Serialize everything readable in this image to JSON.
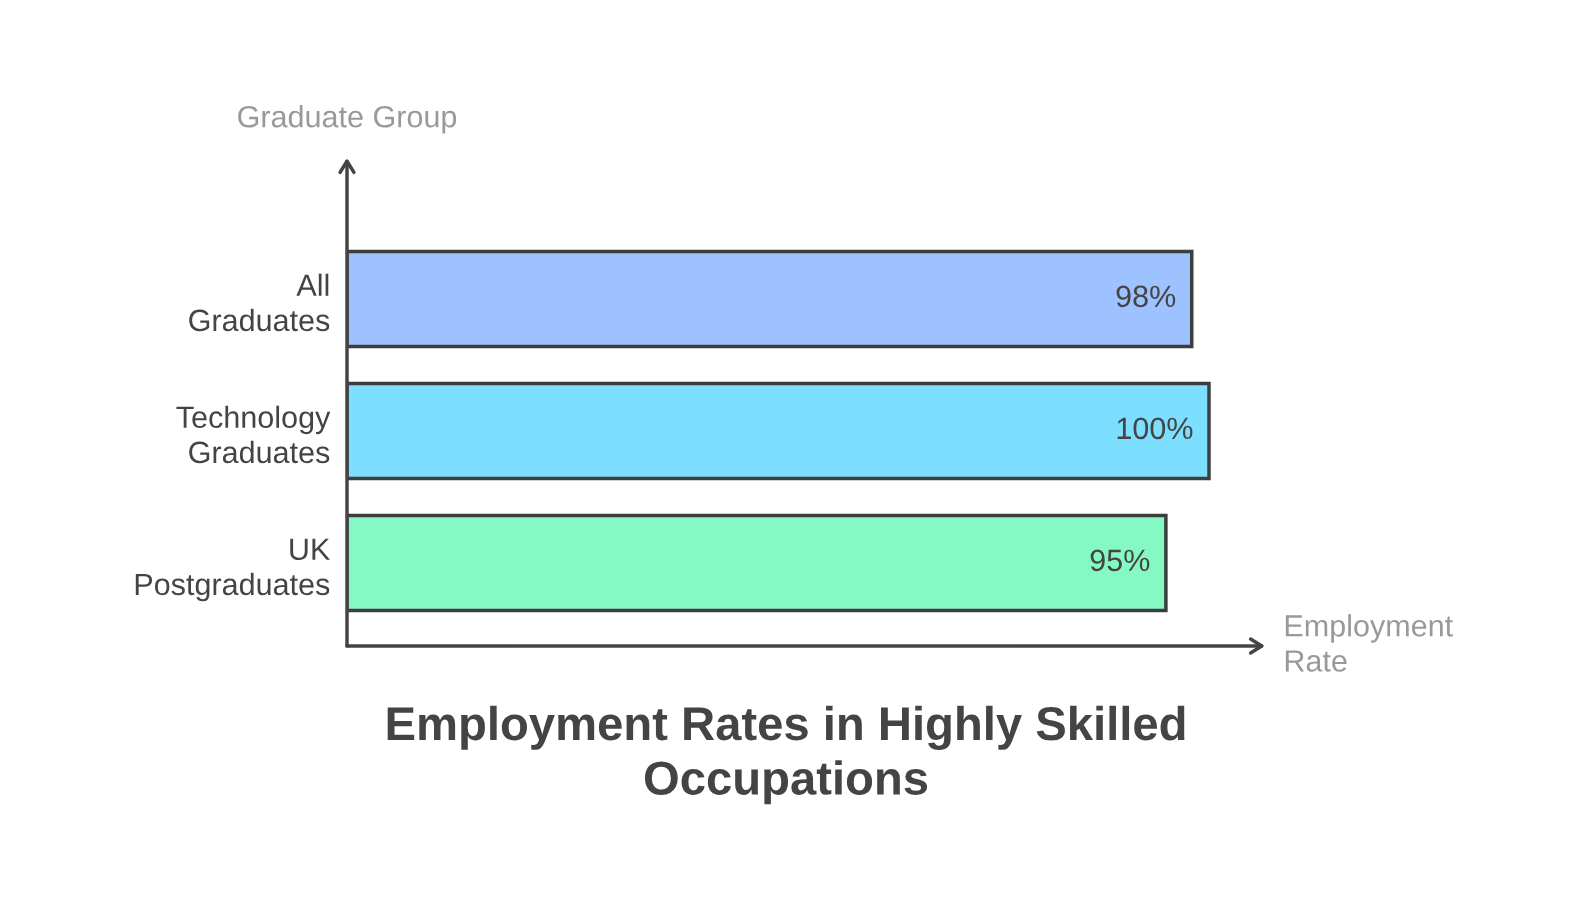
{
  "chart_data": {
    "type": "bar",
    "orientation": "horizontal",
    "title": "Employment Rates in Highly Skilled Occupations",
    "xlabel": "Employment Rate",
    "ylabel": "Graduate Group",
    "categories": [
      "All Graduates",
      "Technology Graduates",
      "UK Postgraduates"
    ],
    "values": [
      98,
      100,
      95
    ],
    "value_labels": [
      "98%",
      "100%",
      "95%"
    ],
    "colors": [
      "#9ec2ff",
      "#7ddfff",
      "#84f9c4"
    ],
    "tick_labels": "y",
    "grid": false,
    "legend": false
  }
}
